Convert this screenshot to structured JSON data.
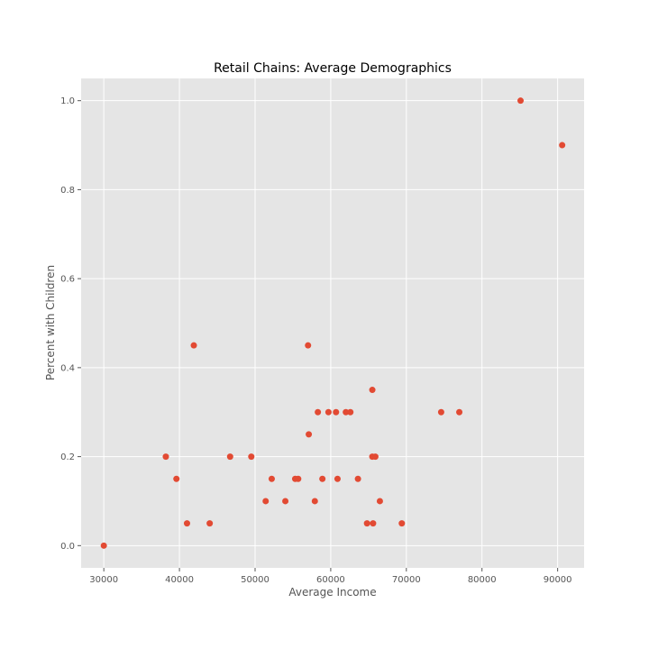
{
  "chart_data": {
    "type": "scatter",
    "title": "Retail Chains: Average Demographics",
    "xlabel": "Average Income",
    "ylabel": "Percent with Children",
    "xlim": [
      27000,
      93500
    ],
    "ylim": [
      -0.05,
      1.05
    ],
    "xticks": [
      30000,
      40000,
      50000,
      60000,
      70000,
      80000,
      90000
    ],
    "yticks": [
      0.0,
      0.2,
      0.4,
      0.6,
      0.8,
      1.0
    ],
    "grid": true,
    "colors": {
      "background": "#e5e5e5",
      "grid": "#ffffff",
      "marker": "#e24a33"
    },
    "series": [
      {
        "points": [
          [
            30000,
            0.0
          ],
          [
            38200,
            0.2
          ],
          [
            39600,
            0.15
          ],
          [
            41000,
            0.05
          ],
          [
            41900,
            0.45
          ],
          [
            44000,
            0.05
          ],
          [
            46700,
            0.2
          ],
          [
            49500,
            0.2
          ],
          [
            51400,
            0.1
          ],
          [
            52200,
            0.15
          ],
          [
            54000,
            0.1
          ],
          [
            55300,
            0.15
          ],
          [
            55700,
            0.15
          ],
          [
            57000,
            0.45
          ],
          [
            57100,
            0.25
          ],
          [
            57900,
            0.1
          ],
          [
            58300,
            0.3
          ],
          [
            58900,
            0.15
          ],
          [
            59700,
            0.3
          ],
          [
            60700,
            0.3
          ],
          [
            60900,
            0.15
          ],
          [
            62000,
            0.3
          ],
          [
            62600,
            0.3
          ],
          [
            63600,
            0.15
          ],
          [
            64800,
            0.05
          ],
          [
            65500,
            0.35
          ],
          [
            65500,
            0.2
          ],
          [
            65600,
            0.05
          ],
          [
            65900,
            0.2
          ],
          [
            66500,
            0.1
          ],
          [
            69400,
            0.05
          ],
          [
            74600,
            0.3
          ],
          [
            77000,
            0.3
          ],
          [
            85100,
            1.0
          ],
          [
            90600,
            0.9
          ]
        ]
      }
    ]
  }
}
